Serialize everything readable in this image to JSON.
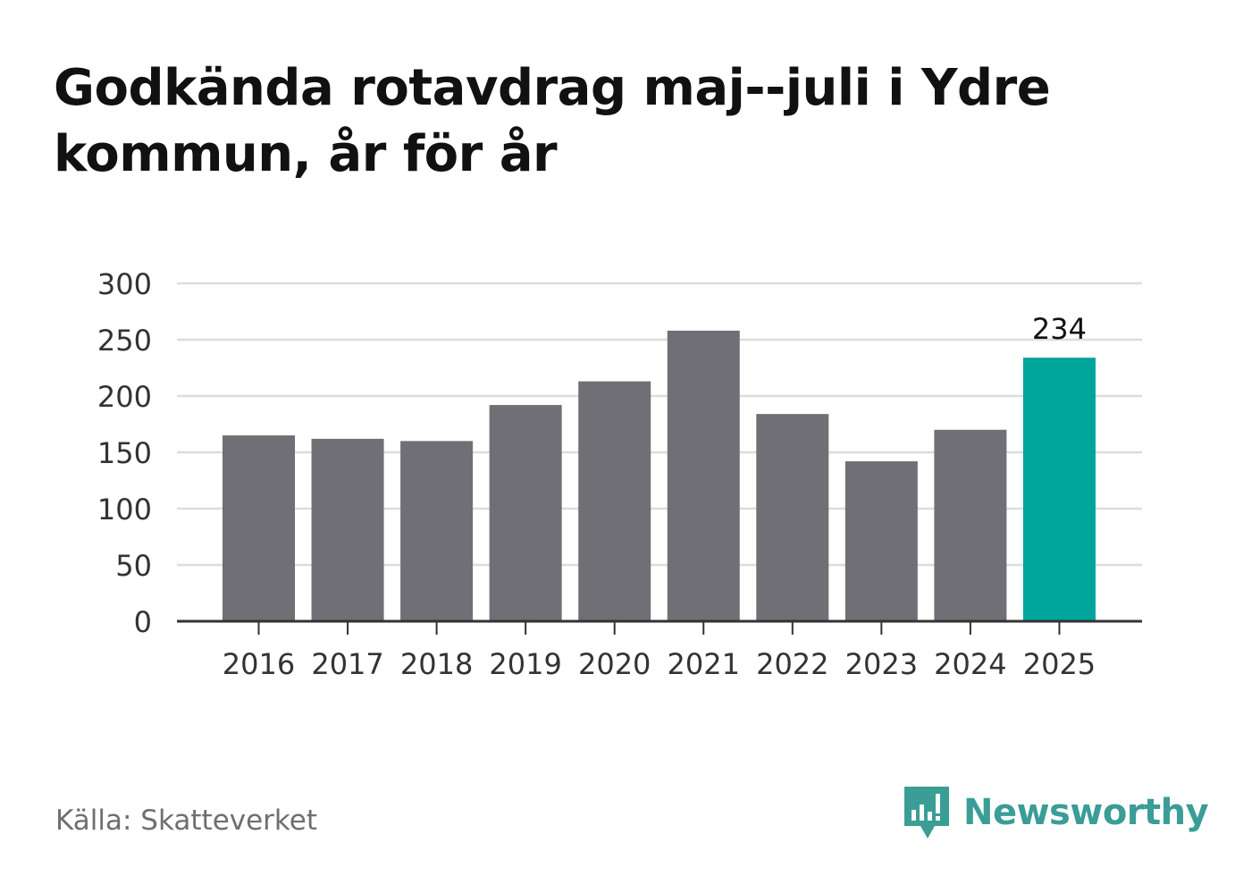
{
  "title": "Godkända rotavdrag maj--juli i Ydre kommun, år för år",
  "source": "Källa: Skatteverket",
  "brand": {
    "name": "Newsworthy",
    "icon": "newsworthy-logo-icon",
    "color": "#3a9d96"
  },
  "chart_data": {
    "type": "bar",
    "categories": [
      "2016",
      "2017",
      "2018",
      "2019",
      "2020",
      "2021",
      "2022",
      "2023",
      "2024",
      "2025"
    ],
    "values": [
      165,
      162,
      160,
      192,
      213,
      258,
      184,
      142,
      170,
      234
    ],
    "highlight_index": 9,
    "highlight_label": "234",
    "colors": {
      "bar": "#706f75",
      "highlight": "#00a59b",
      "grid": "#dcdcdc",
      "axis": "#333333"
    },
    "ylim": [
      0,
      300
    ],
    "yticks": [
      0,
      50,
      100,
      150,
      200,
      250,
      300
    ],
    "grid": true,
    "xlabel": "",
    "ylabel": ""
  }
}
